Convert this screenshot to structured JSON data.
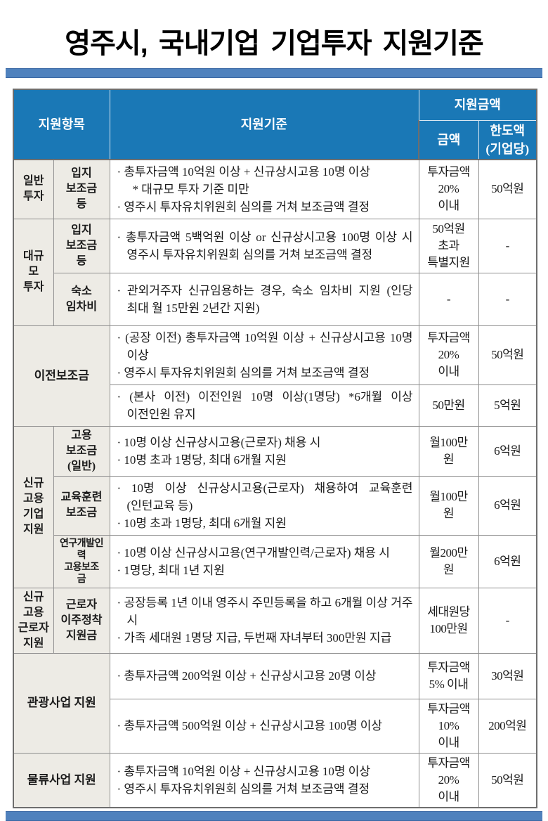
{
  "title": "영주시, 국내기업 기업투자 지원기준",
  "colors": {
    "bar": "#4f81bd",
    "header_bg": "#1a78b6",
    "header_text": "#ffffff",
    "label_bg": "#edebe5",
    "border": "#8f8f8f",
    "text": "#1b1b1b"
  },
  "table": {
    "headers": {
      "item": "지원항목",
      "criteria": "지원기준",
      "amount_group": "지원금액",
      "amount": "금액",
      "limit": "한도액\n(기업당)"
    },
    "rows": {
      "general": {
        "group": "일반\n투자",
        "sub": "입지\n보조금\n등",
        "criteria": [
          "· 총투자금액 10억원 이상 + 신규상시고용 10명 이상",
          "* 대규모 투자 기준 미만",
          "· 영주시 투자유치위원회 심의를 거쳐 보조금액 결정"
        ],
        "amount": "투자금액\n20%\n이내",
        "limit": "50억원"
      },
      "large": {
        "group": "대규\n모\n투자",
        "a": {
          "sub": "입지\n보조금\n등",
          "criteria": [
            "· 총투자금액 5백억원 이상 or 신규상시고용 100명 이상 시 영주시 투자유치위원회 심의를 거쳐 보조금액 결정"
          ],
          "amount": "50억원\n초과\n특별지원",
          "limit": "-"
        },
        "b": {
          "sub": "숙소\n임차비",
          "criteria": [
            "· 관외거주자 신규임용하는 경우, 숙소 임차비 지원 (인당 최대 월 15만원 2년간 지원)"
          ],
          "amount": "-",
          "limit": "-"
        }
      },
      "relocation": {
        "label": "이전보조금",
        "a": {
          "criteria": [
            "· (공장 이전) 총투자금액 10억원 이상 + 신규상시고용 10명 이상",
            "· 영주시 투자유치위원회 심의를 거쳐 보조금액 결정"
          ],
          "amount": "투자금액\n20%\n이내",
          "limit": "50억원"
        },
        "b": {
          "criteria": [
            "· (본사 이전) 이전인원 10명 이상(1명당) *6개월 이상 이전인원 유지"
          ],
          "amount": "50만원",
          "limit": "5억원"
        }
      },
      "newemp": {
        "group": "신규\n고용\n기업\n지원",
        "a": {
          "sub": "고용\n보조금\n(일반)",
          "criteria": [
            "· 10명 이상 신규상시고용(근로자) 채용 시",
            "· 10명 초과 1명당, 최대 6개월 지원"
          ],
          "amount": "월100만\n원",
          "limit": "6억원"
        },
        "b": {
          "sub": "교육훈련\n보조금",
          "criteria": [
            "· 10명 이상 신규상시고용(근로자) 채용하여 교육훈련 (인턴교육 등)",
            "· 10명 초과 1명당, 최대 6개월 지원"
          ],
          "amount": "월100만\n원",
          "limit": "6억원"
        },
        "c": {
          "sub": "연구개발인\n력\n고용보조\n금",
          "criteria": [
            "· 10명 이상 신규상시고용(연구개발인력/근로자) 채용 시",
            "· 1명당, 최대 1년 지원"
          ],
          "amount": "월200만\n원",
          "limit": "6억원"
        }
      },
      "worker": {
        "group": "신규\n고용\n근로자\n지원",
        "sub": "근로자\n이주정착\n지원금",
        "criteria": [
          "· 공장등록 1년 이내 영주시 주민등록을 하고 6개월 이상 거주 시",
          "· 가족 세대원 1명당 지급, 두번째 자녀부터 300만원 지급"
        ],
        "amount": "세대원당\n100만원",
        "limit": "-"
      },
      "tourism": {
        "label": "관광사업 지원",
        "a": {
          "criteria": [
            "· 총투자금액 200억원 이상 + 신규상시고용 20명 이상"
          ],
          "amount": "투자금액\n5% 이내",
          "limit": "30억원"
        },
        "b": {
          "criteria": [
            "· 총투자금액 500억원 이상 + 신규상시고용 100명 이상"
          ],
          "amount": "투자금액\n10%\n이내",
          "limit": "200억원"
        }
      },
      "logistics": {
        "label": "물류사업 지원",
        "criteria": [
          "· 총투자금액 10억원 이상 + 신규상시고용 10명 이상",
          "· 영주시 투자유치위원회 심의를 거쳐 보조금액 결정"
        ],
        "amount": "투자금액\n20%\n이내",
        "limit": "50억원"
      }
    }
  }
}
